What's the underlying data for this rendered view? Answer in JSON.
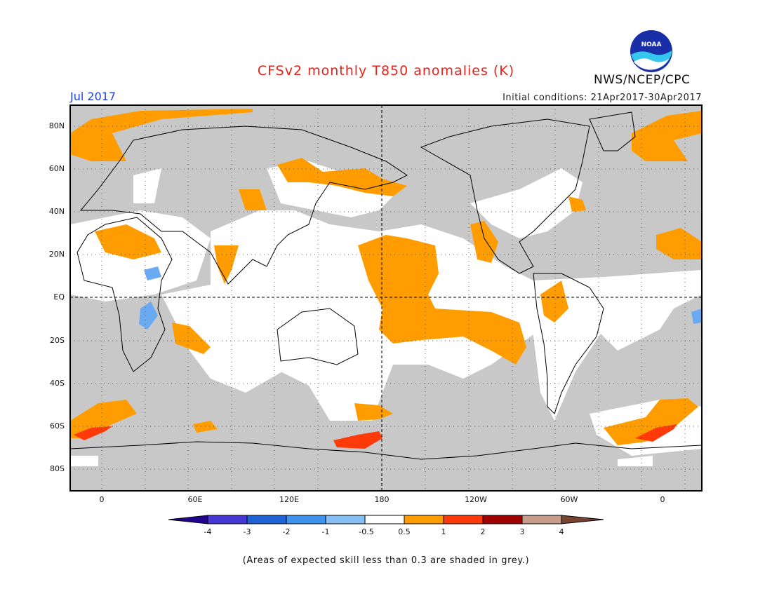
{
  "header": {
    "title": "CFSv2 monthly T850 anomalies (K)",
    "month": "Jul 2017",
    "initial_conditions": "Initial conditions: 21Apr2017-30Apr2017",
    "agency": "NWS/NCEP/CPC",
    "logo_text": "NOAA"
  },
  "axes": {
    "lat_labels": [
      "80N",
      "60N",
      "40N",
      "20N",
      "EQ",
      "20S",
      "40S",
      "60S",
      "80S"
    ],
    "lon_labels": [
      "0",
      "60E",
      "120E",
      "180",
      "120W",
      "60W",
      "0"
    ]
  },
  "colorbar": {
    "labels": [
      "-4",
      "-3",
      "-2",
      "-1",
      "-0.5",
      "0.5",
      "1",
      "2",
      "3",
      "4"
    ],
    "colors": [
      "#22048f",
      "#4738d6",
      "#1f63d6",
      "#3f93ee",
      "#86bff4",
      "#ffffff",
      "#ff9d00",
      "#ff3a0a",
      "#a00000",
      "#c79c88",
      "#774431"
    ]
  },
  "footnote": "(Areas of expected skill less than 0.3 are shaded in grey.)",
  "colors": {
    "grey_skill": "#c8c8c8",
    "warm": "#ff9d00",
    "hot": "#ff3a0a",
    "cool": "#6aaaf2",
    "title": "#e8231b",
    "month": "#1f3fd8"
  }
}
